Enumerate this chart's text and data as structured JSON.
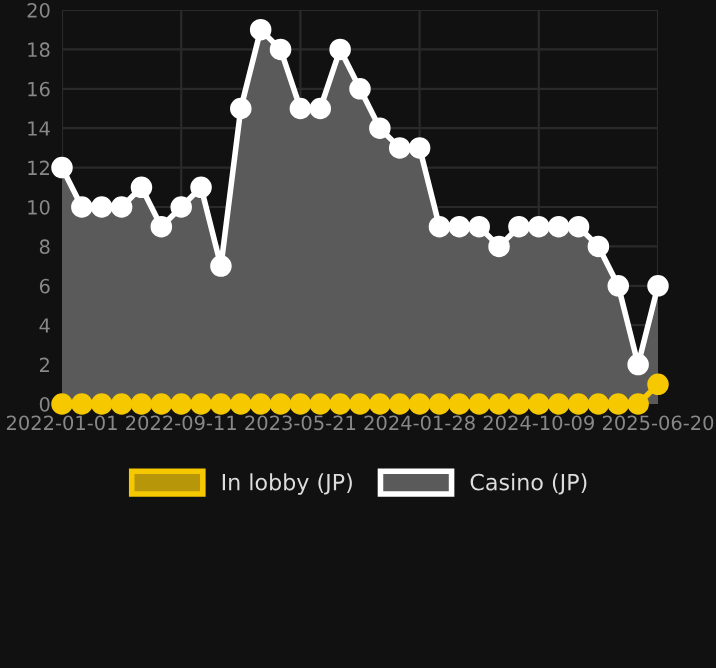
{
  "chart_data": {
    "type": "area",
    "categories": [
      "2022-01-01",
      null,
      null,
      null,
      null,
      null,
      "2022-09-11",
      null,
      null,
      null,
      null,
      null,
      "2023-05-21",
      null,
      null,
      null,
      null,
      null,
      "2024-01-28",
      null,
      null,
      null,
      null,
      null,
      "2024-10-09",
      null,
      null,
      null,
      null,
      null,
      "2025-06-20"
    ],
    "series": [
      {
        "name": "In lobby (JP)",
        "color": "#f5c800",
        "values": [
          0,
          0,
          0,
          0,
          0,
          0,
          0,
          0,
          0,
          0,
          0,
          0,
          0,
          0,
          0,
          0,
          0,
          0,
          0,
          0,
          0,
          0,
          0,
          0,
          0,
          0,
          0,
          0,
          0,
          0,
          1
        ]
      },
      {
        "name": "Casino (JP)",
        "color": "#ffffff",
        "values": [
          12,
          10,
          10,
          10,
          11,
          9,
          10,
          11,
          7,
          15,
          19,
          18,
          15,
          15,
          18,
          16,
          14,
          13,
          13,
          9,
          9,
          9,
          8,
          9,
          9,
          9,
          9,
          8,
          6,
          2,
          6
        ]
      }
    ],
    "ylim": [
      0,
      20
    ],
    "yticks": [
      0,
      2,
      4,
      6,
      8,
      10,
      12,
      14,
      16,
      18,
      20
    ],
    "grid": true,
    "legend": "bottom",
    "marker": "circle",
    "line_style": "solid"
  }
}
